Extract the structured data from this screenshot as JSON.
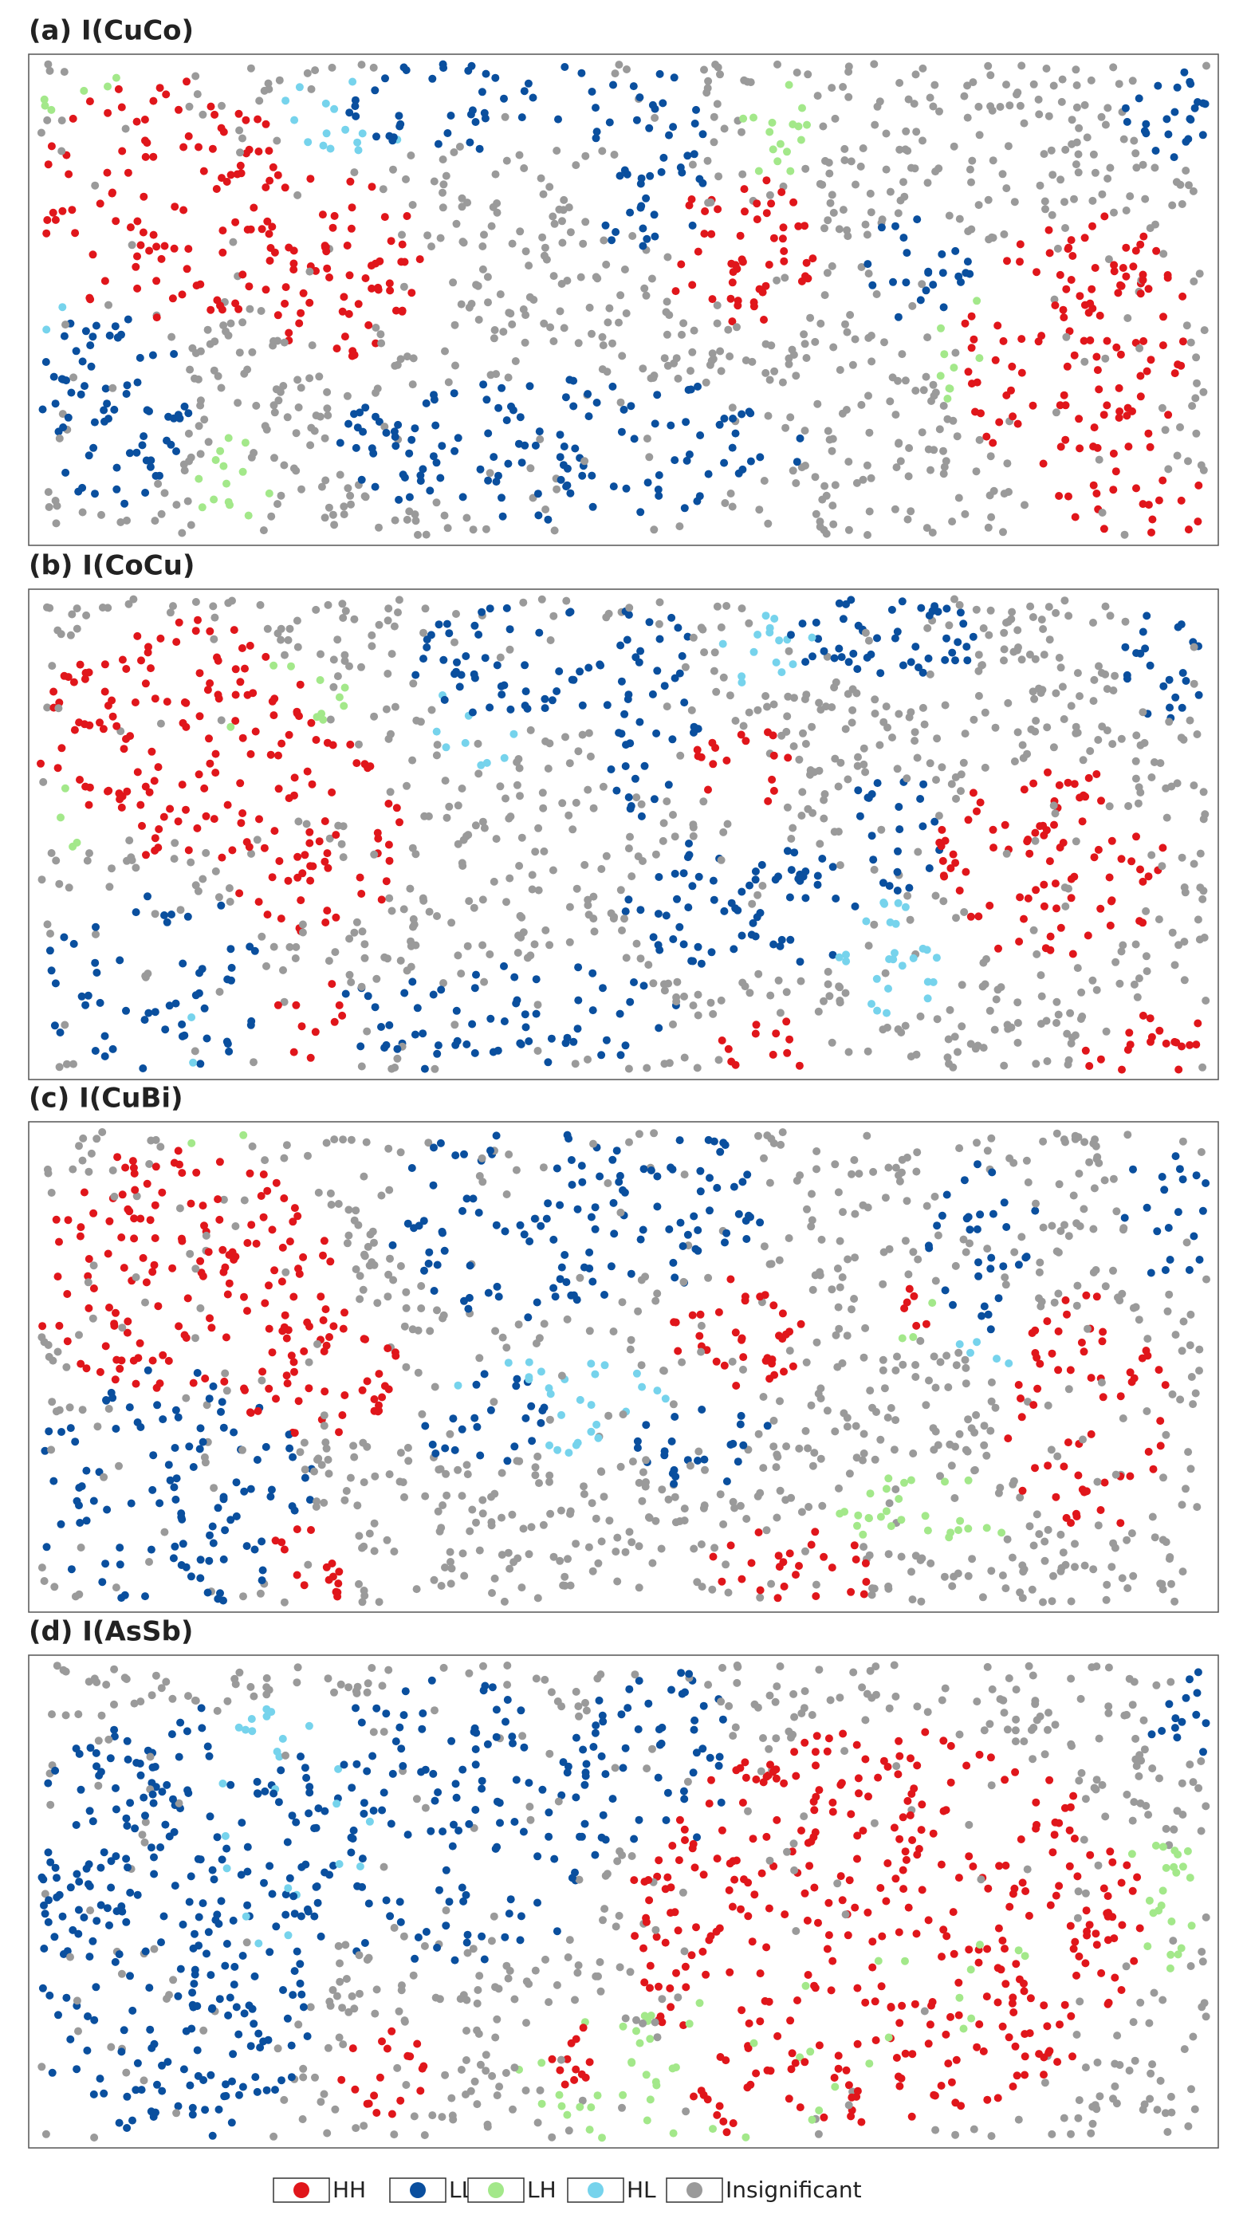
{
  "panels": [
    {
      "title": "(a) I(CuCo)"
    },
    {
      "title": "(b) I(CoCu)"
    },
    {
      "title": "(c) I(CuBi)"
    },
    {
      "title": "(d) I(AsSb)"
    }
  ],
  "legend": [
    {
      "label": "HH",
      "color": "#e0161b"
    },
    {
      "label": "LL",
      "color": "#0a4f9e"
    },
    {
      "label": "LH",
      "color": "#a3e88a"
    },
    {
      "label": "HL",
      "color": "#76d3ec"
    },
    {
      "label": "Insignificant",
      "color": "#9a9a9a"
    }
  ]
}
